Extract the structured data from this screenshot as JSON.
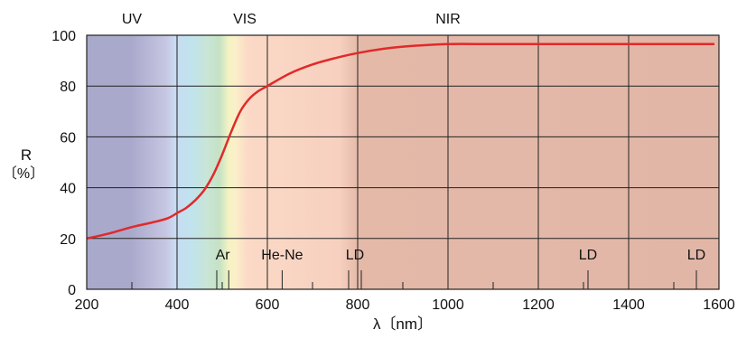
{
  "chart_data": {
    "type": "line",
    "title": "",
    "xlabel": "λ〔nm〕",
    "ylabel": "R",
    "ylabel_unit": "〔%〕",
    "xlim": [
      200,
      1600
    ],
    "ylim": [
      0,
      100
    ],
    "x_ticks": [
      200,
      400,
      600,
      800,
      1000,
      1200,
      1400,
      1600
    ],
    "y_ticks": [
      0,
      20,
      40,
      60,
      80,
      100
    ],
    "grid": true,
    "colors": {
      "curve": "#e02a2a",
      "uv": "#a9a9cc",
      "nir": "#e2b6a7",
      "grid": "#222222"
    },
    "regions": [
      {
        "label": "UV",
        "x_center": 300
      },
      {
        "label": "VIS",
        "x_center": 550
      },
      {
        "label": "NIR",
        "x_center": 1000
      }
    ],
    "laser_markers": [
      {
        "label": "Ar",
        "lines": [
          488,
          514.5
        ]
      },
      {
        "label": "He-Ne",
        "lines": [
          632.8
        ]
      },
      {
        "label": "LD",
        "lines": [
          780,
          808
        ]
      },
      {
        "label": "LD",
        "lines": [
          1310
        ]
      },
      {
        "label": "LD",
        "lines": [
          1550
        ]
      }
    ],
    "series": [
      {
        "x": [
          200,
          250,
          300,
          350,
          380,
          400,
          420,
          440,
          460,
          480,
          500,
          520,
          540,
          560,
          580,
          600,
          650,
          700,
          750,
          800,
          850,
          900,
          1000,
          1100,
          1200,
          1300,
          1400,
          1500,
          1590
        ],
        "values": [
          20,
          22,
          24.5,
          26.5,
          28,
          30,
          32,
          35,
          39,
          45,
          53,
          62,
          70,
          75,
          78,
          80,
          85,
          88.5,
          91,
          93,
          94.5,
          95.5,
          96.5,
          96.5,
          96.5,
          96.5,
          96.5,
          96.5,
          96.5
        ]
      }
    ]
  }
}
